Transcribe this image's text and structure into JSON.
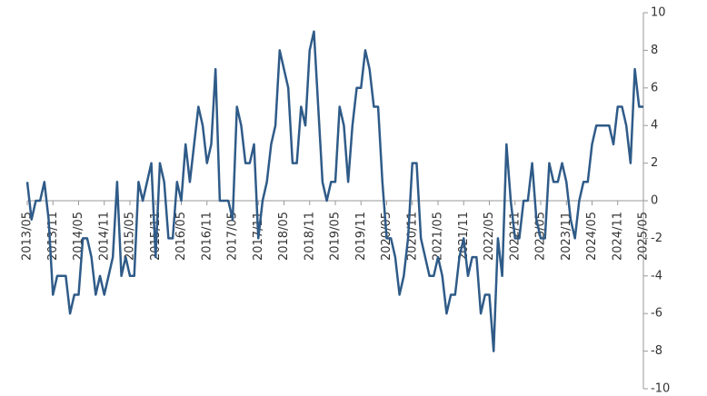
{
  "chart_data": {
    "type": "line",
    "categories": [
      "2013/05",
      null,
      null,
      null,
      null,
      null,
      "2013/11",
      null,
      null,
      null,
      null,
      null,
      "2014/05",
      null,
      null,
      null,
      null,
      null,
      "2014/11",
      null,
      null,
      null,
      null,
      null,
      "2015/05",
      null,
      null,
      null,
      null,
      null,
      "2015/11",
      null,
      null,
      null,
      null,
      null,
      "2016/05",
      null,
      null,
      null,
      null,
      null,
      "2016/11",
      null,
      null,
      null,
      null,
      null,
      "2017/05",
      null,
      null,
      null,
      null,
      null,
      "2017/11",
      null,
      null,
      null,
      null,
      null,
      "2018/05",
      null,
      null,
      null,
      null,
      null,
      "2018/11",
      null,
      null,
      null,
      null,
      null,
      "2019/05",
      null,
      null,
      null,
      null,
      null,
      "2019/11",
      null,
      null,
      null,
      null,
      null,
      "2020/05",
      null,
      null,
      null,
      null,
      null,
      "2020/11",
      null,
      null,
      null,
      null,
      null,
      "2021/05",
      null,
      null,
      null,
      null,
      null,
      "2021/11",
      null,
      null,
      null,
      null,
      null,
      "2022/05",
      null,
      null,
      null,
      null,
      null,
      "2022/11",
      null,
      null,
      null,
      null,
      null,
      "2023/05",
      null,
      null,
      null,
      null,
      null,
      "2023/11",
      null,
      null,
      null,
      null,
      null,
      "2024/05",
      null,
      null,
      null,
      null,
      null,
      "2024/11",
      null,
      null,
      null,
      null,
      null,
      "2025/05"
    ],
    "values": [
      1,
      -1,
      0,
      0,
      1,
      -1,
      -5,
      -4,
      -4,
      -4,
      -6,
      -5,
      -5,
      -2,
      -2,
      -3,
      -5,
      -4,
      -5,
      -4,
      -3,
      1,
      -4,
      -3,
      -4,
      -4,
      1,
      0,
      1,
      2,
      -3,
      2,
      1,
      -2,
      -2,
      1,
      0,
      3,
      1,
      3,
      5,
      4,
      2,
      3,
      7,
      0,
      0,
      0,
      -1,
      5,
      4,
      2,
      2,
      3,
      -2,
      0,
      1,
      3,
      4,
      8,
      7,
      6,
      2,
      2,
      5,
      4,
      8,
      9,
      5,
      1,
      0,
      1,
      1,
      5,
      4,
      1,
      4,
      6,
      6,
      8,
      7,
      5,
      5,
      1,
      -2,
      -2,
      -3,
      -5,
      -4,
      -2,
      2,
      2,
      -2,
      -3,
      -4,
      -4,
      -3,
      -4,
      -6,
      -5,
      -5,
      -3,
      -2,
      -4,
      -3,
      -3,
      -6,
      -5,
      -5,
      -8,
      -2,
      -4,
      3,
      0,
      -2,
      -2,
      0,
      0,
      2,
      -1,
      -2,
      -2,
      2,
      1,
      1,
      2,
      1,
      -1,
      -2,
      0,
      1,
      1,
      3,
      4,
      4,
      4,
      4,
      3,
      5,
      5,
      4,
      2,
      7,
      5,
      5
    ],
    "color": "#2f5b88",
    "ylim": [
      -10,
      10
    ],
    "yticks": [
      -10,
      -8,
      -6,
      -4,
      -2,
      0,
      2,
      4,
      6,
      8,
      10
    ]
  }
}
